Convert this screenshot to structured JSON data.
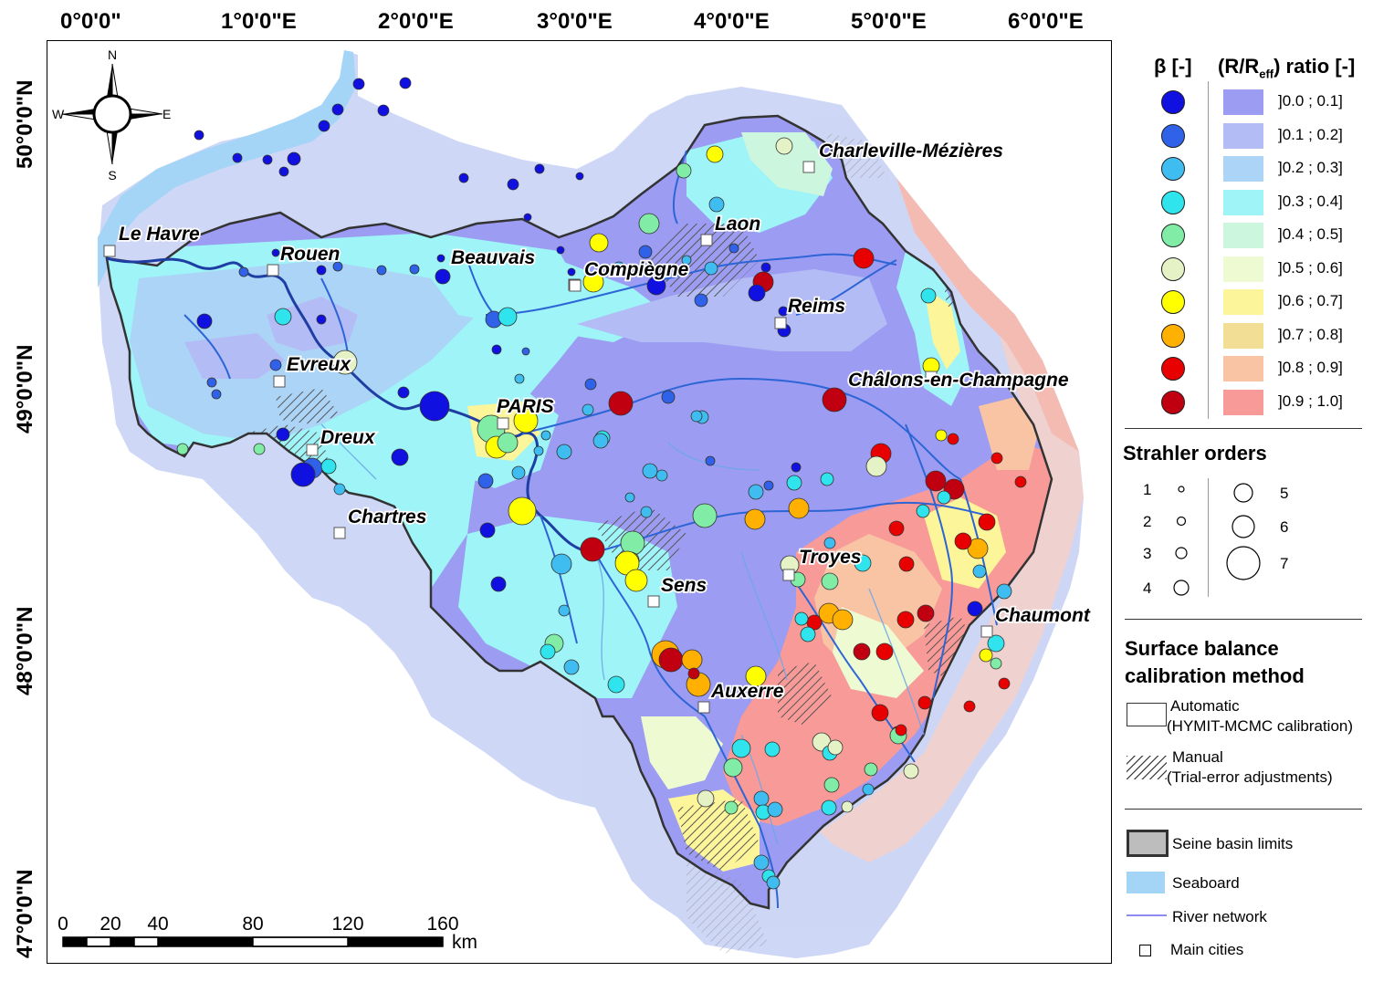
{
  "axes": {
    "top_ticks": [
      "0°0'0\"",
      "1°0'0\"E",
      "2°0'0\"E",
      "3°0'0\"E",
      "4°0'0\"E",
      "5°0'0\"E",
      "6°0'0\"E"
    ],
    "left_ticks": [
      "50°0'0\"N",
      "49°0'0\"N",
      "48°0'0\"N",
      "47°0'0\"N"
    ]
  },
  "compass": {
    "n": "N",
    "s": "S",
    "e": "E",
    "w": "W"
  },
  "scale_bar": {
    "ticks": [
      "0",
      "20",
      "40",
      "80",
      "120",
      "160"
    ],
    "unit": "km"
  },
  "cities": [
    "Le Havre",
    "Rouen",
    "Beauvais",
    "Compiègne",
    "Laon",
    "Charleville-Mézières",
    "Reims",
    "Evreux",
    "PARIS",
    "Dreux",
    "Chartres",
    "Châlons-en-Champagne",
    "Troyes",
    "Sens",
    "Chaumont",
    "Auxerre"
  ],
  "legend": {
    "beta_header": "β [-]",
    "ratio_header_prefix": "(R/R",
    "ratio_header_sub": "eff",
    "ratio_header_suffix": ") ratio [-]",
    "classes": [
      {
        "label": "]0.0 ; 0.1]",
        "beta_color": "#1010e0",
        "ratio_color": "#9c9cf2"
      },
      {
        "label": "]0.1 ; 0.2]",
        "beta_color": "#2f62e8",
        "ratio_color": "#b3bcf5"
      },
      {
        "label": "]0.2 ; 0.3]",
        "beta_color": "#3fbcf0",
        "ratio_color": "#acd4f6"
      },
      {
        "label": "]0.3 ; 0.4]",
        "beta_color": "#2fe4ec",
        "ratio_color": "#9ef4f6"
      },
      {
        "label": "]0.4 ; 0.5]",
        "beta_color": "#80eca6",
        "ratio_color": "#cdf6df"
      },
      {
        "label": "]0.5 ; 0.6]",
        "beta_color": "#e4f2c6",
        "ratio_color": "#eefad1"
      },
      {
        "label": "]0.6 ; 0.7]",
        "beta_color": "#ffff00",
        "ratio_color": "#fdf59a"
      },
      {
        "label": "]0.7 ; 0.8]",
        "beta_color": "#ffb000",
        "ratio_color": "#f2de94"
      },
      {
        "label": "]0.8 ; 0.9]",
        "beta_color": "#e80000",
        "ratio_color": "#f9c4a4"
      },
      {
        "label": "]0.9 ; 1.0]",
        "beta_color": "#c00010",
        "ratio_color": "#f79a98"
      }
    ],
    "strahler_header": "Strahler orders",
    "strahler_orders": [
      "1",
      "2",
      "3",
      "4",
      "5",
      "6",
      "7"
    ],
    "method_header_1": "Surface balance",
    "method_header_2": "calibration method",
    "automatic_1": "Automatic",
    "automatic_2": "(HYMIT-MCMC calibration)",
    "manual_1": "Manual",
    "manual_2": "(Trial-error adjustments)",
    "basin_limits": "Seine basin limits",
    "seaboard": "Seaboard",
    "river_network": "River network",
    "main_cities": "Main cities"
  }
}
